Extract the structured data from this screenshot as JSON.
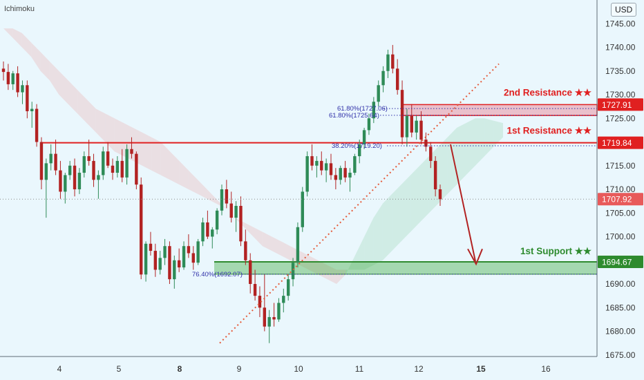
{
  "indicator": "Ichimoku",
  "currency": "USD",
  "chart_data": {
    "type": "candlestick",
    "y_axis": {
      "min": 1670,
      "max": 1750,
      "ticks": [
        1675,
        1680,
        1685,
        1690,
        1695,
        1700,
        1705,
        1710,
        1715,
        1720,
        1725,
        1730,
        1735,
        1740
      ],
      "tick_labels": [
        "1675.00",
        "1680.00",
        "1685.00",
        "1690.00",
        "1695.00",
        "1700.00",
        "1705.00",
        "1710.00",
        "1715.00",
        "1720.00",
        "1725.00",
        "1730.00",
        "1735.00",
        "1740.00"
      ],
      "top_partial_label": "1745.00"
    },
    "x_axis": {
      "labels": [
        "4",
        "5",
        "8",
        "9",
        "10",
        "11",
        "12",
        "15",
        "16"
      ],
      "bold_labels": [
        "8",
        "15"
      ]
    },
    "price_tags": [
      {
        "value": 1727.91,
        "label": "1727.91",
        "color": "#e02020"
      },
      {
        "value": 1719.84,
        "label": "1719.84",
        "color": "#e02020"
      },
      {
        "value": 1707.92,
        "label": "1707.92",
        "color": "#e85a5a"
      },
      {
        "value": 1694.67,
        "label": "1694.67",
        "color": "#2e8b2e"
      }
    ],
    "annotations": {
      "resistance_2": {
        "label": "2nd Resistance ★★",
        "color": "#e02020",
        "zone": [
          1725.6,
          1727.9
        ]
      },
      "resistance_1": {
        "label": "1st Resistance ★★",
        "color": "#e02020",
        "level": 1719.84
      },
      "support_1": {
        "label": "1st Support ★★",
        "color": "#2e8b2e",
        "zone": [
          1692.07,
          1694.67
        ]
      }
    },
    "fib_labels": [
      "61.80%(1727.06)",
      "61.80%(1725.64)",
      "38.20%(1719.20)",
      "76.40%(1692.07)"
    ],
    "current_price": 1707.92,
    "candles": [
      [
        1735.5,
        1737.0,
        1733.0,
        1734.8
      ],
      [
        1734.8,
        1736.5,
        1731.0,
        1732.2
      ],
      [
        1732.2,
        1735.0,
        1731.0,
        1734.5
      ],
      [
        1734.5,
        1736.0,
        1729.5,
        1730.5
      ],
      [
        1730.5,
        1733.0,
        1728.0,
        1732.0
      ],
      [
        1732.0,
        1733.0,
        1725.0,
        1726.5
      ],
      [
        1726.5,
        1728.5,
        1723.0,
        1727.0
      ],
      [
        1727.0,
        1728.0,
        1719.0,
        1720.0
      ],
      [
        1720.0,
        1721.0,
        1710.0,
        1712.0
      ],
      [
        1712.0,
        1716.5,
        1704.0,
        1715.5
      ],
      [
        1715.5,
        1719.5,
        1714.0,
        1717.5
      ],
      [
        1717.5,
        1720.5,
        1713.0,
        1714.0
      ],
      [
        1714.0,
        1716.0,
        1708.0,
        1709.5
      ],
      [
        1709.5,
        1713.5,
        1707.0,
        1713.0
      ],
      [
        1713.0,
        1716.0,
        1712.0,
        1715.0
      ],
      [
        1715.0,
        1716.5,
        1708.5,
        1710.0
      ],
      [
        1710.0,
        1714.5,
        1709.0,
        1713.5
      ],
      [
        1713.5,
        1718.0,
        1712.5,
        1717.0
      ],
      [
        1717.0,
        1720.5,
        1715.0,
        1716.0
      ],
      [
        1716.0,
        1717.5,
        1710.5,
        1712.0
      ],
      [
        1712.0,
        1714.0,
        1708.0,
        1713.0
      ],
      [
        1713.0,
        1719.0,
        1712.0,
        1718.0
      ],
      [
        1718.0,
        1720.0,
        1714.5,
        1715.0
      ],
      [
        1715.0,
        1716.5,
        1712.0,
        1713.5
      ],
      [
        1713.5,
        1717.0,
        1712.5,
        1716.0
      ],
      [
        1716.0,
        1718.5,
        1711.5,
        1712.5
      ],
      [
        1712.5,
        1719.5,
        1711.0,
        1718.5
      ],
      [
        1718.5,
        1721.0,
        1716.5,
        1717.5
      ],
      [
        1717.5,
        1718.0,
        1710.0,
        1711.0
      ],
      [
        1711.0,
        1712.5,
        1691.0,
        1692.0
      ],
      [
        1692.0,
        1699.0,
        1690.5,
        1698.5
      ],
      [
        1698.5,
        1701.0,
        1696.0,
        1697.0
      ],
      [
        1697.0,
        1698.5,
        1691.5,
        1693.0
      ],
      [
        1693.0,
        1697.0,
        1692.0,
        1695.5
      ],
      [
        1695.5,
        1699.5,
        1694.0,
        1698.0
      ],
      [
        1698.0,
        1699.0,
        1690.0,
        1691.0
      ],
      [
        1691.0,
        1696.0,
        1689.0,
        1695.0
      ],
      [
        1695.0,
        1697.5,
        1692.5,
        1693.5
      ],
      [
        1693.5,
        1699.0,
        1693.0,
        1698.0
      ],
      [
        1698.0,
        1700.5,
        1695.5,
        1696.5
      ],
      [
        1696.5,
        1698.0,
        1693.0,
        1694.5
      ],
      [
        1694.5,
        1699.5,
        1694.0,
        1699.0
      ],
      [
        1699.0,
        1704.0,
        1698.0,
        1703.0
      ],
      [
        1703.0,
        1705.5,
        1699.5,
        1700.0
      ],
      [
        1700.0,
        1702.0,
        1697.5,
        1701.5
      ],
      [
        1701.5,
        1706.0,
        1700.5,
        1705.5
      ],
      [
        1705.5,
        1711.0,
        1704.5,
        1710.0
      ],
      [
        1710.0,
        1712.0,
        1706.0,
        1707.0
      ],
      [
        1707.0,
        1709.5,
        1703.0,
        1704.0
      ],
      [
        1704.0,
        1707.5,
        1701.0,
        1706.5
      ],
      [
        1706.5,
        1708.5,
        1698.0,
        1699.0
      ],
      [
        1699.0,
        1701.5,
        1694.0,
        1695.0
      ],
      [
        1695.0,
        1696.5,
        1688.0,
        1690.0
      ],
      [
        1690.0,
        1693.0,
        1686.5,
        1687.5
      ],
      [
        1687.5,
        1689.5,
        1683.0,
        1685.0
      ],
      [
        1685.0,
        1692.0,
        1680.0,
        1681.0
      ],
      [
        1681.0,
        1684.5,
        1677.5,
        1683.0
      ],
      [
        1683.0,
        1686.0,
        1681.0,
        1682.5
      ],
      [
        1682.5,
        1687.0,
        1682.0,
        1686.0
      ],
      [
        1686.0,
        1689.0,
        1684.0,
        1687.5
      ],
      [
        1687.5,
        1692.0,
        1686.5,
        1691.0
      ],
      [
        1691.0,
        1695.5,
        1689.5,
        1694.5
      ],
      [
        1694.5,
        1703.0,
        1693.5,
        1702.0
      ],
      [
        1702.0,
        1710.5,
        1701.0,
        1709.5
      ],
      [
        1709.5,
        1718.0,
        1708.5,
        1717.0
      ],
      [
        1717.0,
        1719.5,
        1714.0,
        1715.0
      ],
      [
        1715.0,
        1717.0,
        1712.5,
        1716.0
      ],
      [
        1716.0,
        1718.0,
        1713.0,
        1714.0
      ],
      [
        1714.0,
        1716.5,
        1711.5,
        1715.5
      ],
      [
        1715.5,
        1717.5,
        1712.0,
        1713.0
      ],
      [
        1713.0,
        1714.5,
        1710.0,
        1712.0
      ],
      [
        1712.0,
        1715.0,
        1711.0,
        1714.5
      ],
      [
        1714.5,
        1716.0,
        1711.5,
        1712.5
      ],
      [
        1712.5,
        1714.5,
        1709.5,
        1713.5
      ],
      [
        1713.5,
        1717.5,
        1713.0,
        1717.0
      ],
      [
        1717.0,
        1720.5,
        1715.5,
        1719.5
      ],
      [
        1719.5,
        1723.0,
        1718.5,
        1722.5
      ],
      [
        1722.5,
        1726.0,
        1721.5,
        1725.0
      ],
      [
        1725.0,
        1729.5,
        1724.0,
        1728.5
      ],
      [
        1728.5,
        1733.0,
        1727.5,
        1732.0
      ],
      [
        1732.0,
        1736.0,
        1730.5,
        1735.0
      ],
      [
        1735.0,
        1739.5,
        1733.5,
        1738.5
      ],
      [
        1738.5,
        1740.5,
        1734.5,
        1735.5
      ],
      [
        1735.5,
        1737.5,
        1730.0,
        1731.0
      ],
      [
        1731.0,
        1733.0,
        1719.5,
        1721.0
      ],
      [
        1721.0,
        1727.0,
        1719.0,
        1725.5
      ],
      [
        1725.5,
        1728.0,
        1721.0,
        1722.0
      ],
      [
        1722.0,
        1725.5,
        1720.5,
        1724.5
      ],
      [
        1724.5,
        1726.5,
        1719.5,
        1720.5
      ],
      [
        1720.5,
        1722.0,
        1718.0,
        1719.0
      ],
      [
        1719.0,
        1720.0,
        1714.5,
        1716.0
      ],
      [
        1716.0,
        1717.0,
        1708.5,
        1710.0
      ],
      [
        1710.0,
        1711.0,
        1706.5,
        1707.9
      ]
    ],
    "cloud": {
      "span_a": [
        1744,
        1742,
        1740,
        1738,
        1735,
        1733,
        1730,
        1728,
        1726,
        1724,
        1722,
        1720,
        1718,
        1717,
        1716,
        1715,
        1714,
        1713,
        1712,
        1711,
        1710,
        1709,
        1708,
        1707,
        1706,
        1704,
        1702,
        1700,
        1698,
        1697,
        1696,
        1695,
        1694,
        1693,
        1692,
        1691,
        1690,
        1692,
        1696,
        1700,
        1704,
        1707,
        1709,
        1711,
        1713,
        1715,
        1717,
        1719,
        1721,
        1723,
        1724,
        1725,
        1725,
        1724.5,
        1724
      ],
      "span_b": [
        1744,
        1744,
        1743,
        1741,
        1739,
        1737,
        1735,
        1733,
        1731,
        1729,
        1727,
        1726,
        1725,
        1724,
        1723,
        1722,
        1721,
        1720,
        1718,
        1716,
        1714,
        1712,
        1710,
        1708,
        1706,
        1704,
        1703,
        1702,
        1701,
        1700,
        1699,
        1698,
        1697,
        1696,
        1695,
        1694,
        1693,
        1693,
        1693,
        1693,
        1694,
        1695,
        1697,
        1699,
        1701,
        1703,
        1705,
        1707,
        1709,
        1711,
        1713,
        1715,
        1717,
        1719,
        1721
      ]
    }
  }
}
